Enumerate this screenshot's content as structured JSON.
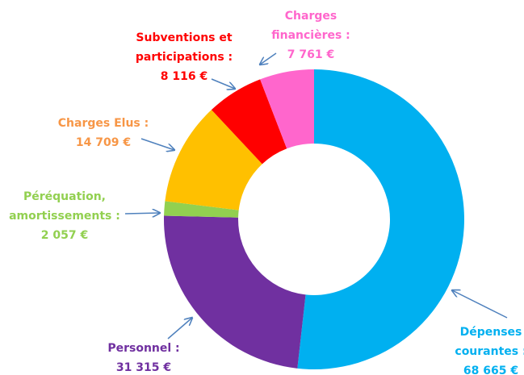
{
  "chart_data": {
    "type": "donut",
    "categories": [
      "Dépenses courantes :",
      "Personnel :",
      "Péréquation, amortissements :",
      "Charges Elus :",
      "Subventions et participations :",
      "Charges financières :"
    ],
    "values": [
      68665,
      31315,
      2057,
      14709,
      8116,
      7761
    ],
    "value_labels": [
      "68 665 €",
      "31 315 €",
      "2 057 €",
      "14 709 €",
      "8 116 €",
      "7 761 €"
    ],
    "colors": [
      "#00b0f0",
      "#7030a0",
      "#92d050",
      "#ffc000",
      "#ff0000",
      "#ff66cc"
    ],
    "label_colors": [
      "#00b0f0",
      "#7030a0",
      "#92d050",
      "#f79646",
      "#ff0000",
      "#ff66cc"
    ]
  }
}
